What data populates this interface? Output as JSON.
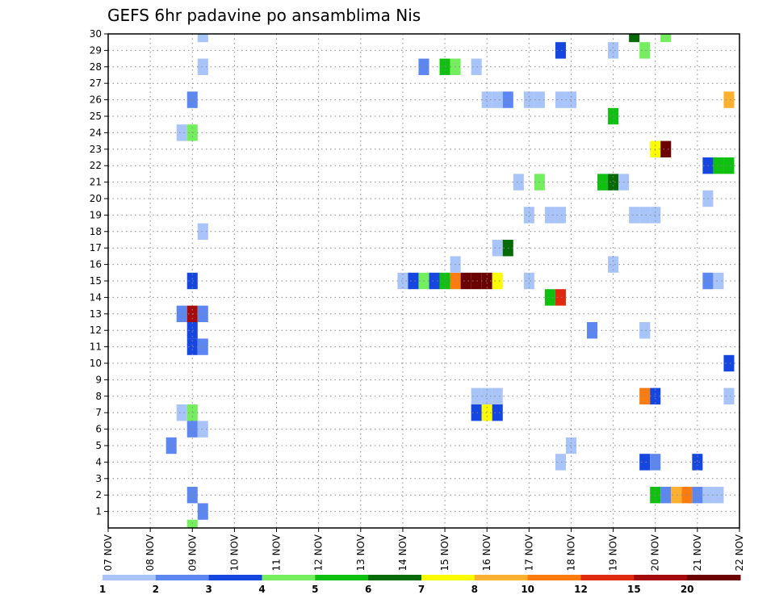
{
  "chart_data": {
    "type": "heatmap",
    "title": "GEFS 6hr padavine po ansamblima Nis",
    "x_ticks": [
      "07 NOV",
      "08 NOV",
      "09 NOV",
      "10 NOV",
      "11 NOV",
      "12 NOV",
      "13 NOV",
      "14 NOV",
      "15 NOV",
      "16 NOV",
      "17 NOV",
      "18 NOV",
      "19 NOV",
      "20 NOV",
      "21 NOV",
      "22 NOV"
    ],
    "y_ticks": [
      "1",
      "2",
      "3",
      "4",
      "5",
      "6",
      "7",
      "8",
      "9",
      "10",
      "11",
      "12",
      "13",
      "14",
      "15",
      "16",
      "17",
      "18",
      "19",
      "20",
      "21",
      "22",
      "23",
      "24",
      "25",
      "26",
      "27",
      "28",
      "29",
      "30"
    ],
    "ylim": [
      0,
      30
    ],
    "grid": true,
    "colorbar": {
      "labels": [
        "1",
        "2",
        "3",
        "4",
        "5",
        "6",
        "7",
        "8",
        "10",
        "12",
        "15",
        "20"
      ],
      "colors": [
        "#a8c4f8",
        "#5c86f0",
        "#1646e0",
        "#74ee5e",
        "#10c010",
        "#066a06",
        "#fcfc00",
        "#fcb030",
        "#fc7c10",
        "#e02a10",
        "#a40a0a",
        "#6a0000"
      ]
    },
    "cells": [
      {
        "x": "09 NOV",
        "t": 1,
        "y": 30,
        "c": 0
      },
      {
        "x": "09 NOV",
        "t": 1,
        "y": 28,
        "c": 0
      },
      {
        "x": "09 NOV",
        "t": 0,
        "y": 26,
        "c": 1
      },
      {
        "x": "09 NOV",
        "t": -1,
        "y": 24,
        "c": 0
      },
      {
        "x": "09 NOV",
        "t": 0,
        "y": 24,
        "c": 3
      },
      {
        "x": "09 NOV",
        "t": 1,
        "y": 18,
        "c": 0
      },
      {
        "x": "09 NOV",
        "t": 0,
        "y": 15,
        "c": 2
      },
      {
        "x": "09 NOV",
        "t": -1,
        "y": 13,
        "c": 1
      },
      {
        "x": "09 NOV",
        "t": 0,
        "y": 13,
        "c": 10
      },
      {
        "x": "09 NOV",
        "t": 1,
        "y": 13,
        "c": 1
      },
      {
        "x": "09 NOV",
        "t": 0,
        "y": 12,
        "c": 2
      },
      {
        "x": "09 NOV",
        "t": 0,
        "y": 11,
        "c": 2
      },
      {
        "x": "09 NOV",
        "t": 1,
        "y": 11,
        "c": 1
      },
      {
        "x": "09 NOV",
        "t": -1,
        "y": 7,
        "c": 0
      },
      {
        "x": "09 NOV",
        "t": 0,
        "y": 7,
        "c": 3
      },
      {
        "x": "09 NOV",
        "t": 0,
        "y": 6,
        "c": 1
      },
      {
        "x": "09 NOV",
        "t": 1,
        "y": 6,
        "c": 0
      },
      {
        "x": "09 NOV",
        "t": -2,
        "y": 5,
        "c": 1
      },
      {
        "x": "09 NOV",
        "t": 0,
        "y": 2,
        "c": 1
      },
      {
        "x": "09 NOV",
        "t": 1,
        "y": 1,
        "c": 1
      },
      {
        "x": "09 NOV",
        "t": 0,
        "y": 0,
        "c": 3
      },
      {
        "x": "14 NOV",
        "t": 2,
        "y": 28,
        "c": 1
      },
      {
        "x": "15 NOV",
        "t": 0,
        "y": 28,
        "c": 4
      },
      {
        "x": "15 NOV",
        "t": 1,
        "y": 28,
        "c": 3
      },
      {
        "x": "15 NOV",
        "t": 3,
        "y": 28,
        "c": 0
      },
      {
        "x": "14 NOV",
        "t": 0,
        "y": 15,
        "c": 0
      },
      {
        "x": "14 NOV",
        "t": 1,
        "y": 15,
        "c": 2
      },
      {
        "x": "14 NOV",
        "t": 2,
        "y": 15,
        "c": 3
      },
      {
        "x": "14 NOV",
        "t": 3,
        "y": 15,
        "c": 2
      },
      {
        "x": "15 NOV",
        "t": 0,
        "y": 15,
        "c": 4
      },
      {
        "x": "15 NOV",
        "t": 1,
        "y": 15,
        "c": 8
      },
      {
        "x": "15 NOV",
        "t": 2,
        "y": 15,
        "c": 11
      },
      {
        "x": "15 NOV",
        "t": 3,
        "y": 15,
        "c": 11
      },
      {
        "x": "16 NOV",
        "t": 0,
        "y": 15,
        "c": 11
      },
      {
        "x": "16 NOV",
        "t": 1,
        "y": 15,
        "c": 6
      },
      {
        "x": "15 NOV",
        "t": 1,
        "y": 16,
        "c": 0
      },
      {
        "x": "16 NOV",
        "t": 0,
        "y": 26,
        "c": 0
      },
      {
        "x": "16 NOV",
        "t": 1,
        "y": 26,
        "c": 0
      },
      {
        "x": "16 NOV",
        "t": 2,
        "y": 26,
        "c": 1
      },
      {
        "x": "17 NOV",
        "t": 0,
        "y": 26,
        "c": 0
      },
      {
        "x": "17 NOV",
        "t": 1,
        "y": 26,
        "c": 0
      },
      {
        "x": "18 NOV",
        "t": 0,
        "y": 26,
        "c": 0
      },
      {
        "x": "18 NOV",
        "t": -1,
        "y": 26,
        "c": 0
      },
      {
        "x": "16 NOV",
        "t": 1,
        "y": 17,
        "c": 0
      },
      {
        "x": "16 NOV",
        "t": 2,
        "y": 17,
        "c": 5
      },
      {
        "x": "15 NOV",
        "t": 3,
        "y": 8,
        "c": 0
      },
      {
        "x": "16 NOV",
        "t": 0,
        "y": 8,
        "c": 0
      },
      {
        "x": "16 NOV",
        "t": 1,
        "y": 8,
        "c": 0
      },
      {
        "x": "15 NOV",
        "t": 3,
        "y": 7,
        "c": 2
      },
      {
        "x": "16 NOV",
        "t": 0,
        "y": 7,
        "c": 6
      },
      {
        "x": "16 NOV",
        "t": 1,
        "y": 7,
        "c": 2
      },
      {
        "x": "16 NOV",
        "t": 3,
        "y": 21,
        "c": 0
      },
      {
        "x": "17 NOV",
        "t": 1,
        "y": 21,
        "c": 3
      },
      {
        "x": "17 NOV",
        "t": 0,
        "y": 19,
        "c": 0
      },
      {
        "x": "17 NOV",
        "t": 2,
        "y": 19,
        "c": 0
      },
      {
        "x": "17 NOV",
        "t": 3,
        "y": 19,
        "c": 0
      },
      {
        "x": "17 NOV",
        "t": 0,
        "y": 15,
        "c": 0
      },
      {
        "x": "17 NOV",
        "t": 2,
        "y": 14,
        "c": 4
      },
      {
        "x": "17 NOV",
        "t": 3,
        "y": 14,
        "c": 9
      },
      {
        "x": "17 NOV",
        "t": 3,
        "y": 29,
        "c": 2
      },
      {
        "x": "18 NOV",
        "t": 0,
        "y": 5,
        "c": 0
      },
      {
        "x": "18 NOV",
        "t": -1,
        "y": 4,
        "c": 0
      },
      {
        "x": "18 NOV",
        "t": 2,
        "y": 12,
        "c": 1
      },
      {
        "x": "19 NOV",
        "t": 0,
        "y": 29,
        "c": 0
      },
      {
        "x": "19 NOV",
        "t": 0,
        "y": 25,
        "c": 4
      },
      {
        "x": "18 NOV",
        "t": 3,
        "y": 21,
        "c": 0
      },
      {
        "x": "19 NOV",
        "t": -1,
        "y": 21,
        "c": 4
      },
      {
        "x": "19 NOV",
        "t": 0,
        "y": 21,
        "c": 5
      },
      {
        "x": "19 NOV",
        "t": 1,
        "y": 21,
        "c": 0
      },
      {
        "x": "19 NOV",
        "t": 0,
        "y": 16,
        "c": 0
      },
      {
        "x": "19 NOV",
        "t": 2,
        "y": 19,
        "c": 0
      },
      {
        "x": "19 NOV",
        "t": 3,
        "y": 19,
        "c": 0
      },
      {
        "x": "20 NOV",
        "t": 0,
        "y": 19,
        "c": 0
      },
      {
        "x": "19 NOV",
        "t": 3,
        "y": 12,
        "c": 0
      },
      {
        "x": "20 NOV",
        "t": -1,
        "y": 12,
        "c": 0
      },
      {
        "x": "19 NOV",
        "t": 2,
        "y": 30,
        "c": 5
      },
      {
        "x": "20 NOV",
        "t": 1,
        "y": 30,
        "c": 3
      },
      {
        "x": "19 NOV",
        "t": 3,
        "y": 29,
        "c": 3
      },
      {
        "x": "20 NOV",
        "t": 0,
        "y": 23,
        "c": 6
      },
      {
        "x": "20 NOV",
        "t": 1,
        "y": 23,
        "c": 11
      },
      {
        "x": "19 NOV",
        "t": 3,
        "y": 8,
        "c": 0
      },
      {
        "x": "20 NOV",
        "t": -1,
        "y": 8,
        "c": 8
      },
      {
        "x": "20 NOV",
        "t": 0,
        "y": 8,
        "c": 2
      },
      {
        "x": "20 NOV",
        "t": -1,
        "y": 4,
        "c": 2
      },
      {
        "x": "20 NOV",
        "t": 0,
        "y": 4,
        "c": 1
      },
      {
        "x": "20 NOV",
        "t": 0,
        "y": 2,
        "c": 4
      },
      {
        "x": "20 NOV",
        "t": 1,
        "y": 2,
        "c": 1
      },
      {
        "x": "20 NOV",
        "t": 2,
        "y": 2,
        "c": 7
      },
      {
        "x": "20 NOV",
        "t": 3,
        "y": 2,
        "c": 8
      },
      {
        "x": "21 NOV",
        "t": 0,
        "y": 2,
        "c": 1
      },
      {
        "x": "21 NOV",
        "t": 1,
        "y": 2,
        "c": 0
      },
      {
        "x": "21 NOV",
        "t": 2,
        "y": 2,
        "c": 0
      },
      {
        "x": "21 NOV",
        "t": 1,
        "y": 20,
        "c": 0
      },
      {
        "x": "21 NOV",
        "t": 1,
        "y": 15,
        "c": 1
      },
      {
        "x": "21 NOV",
        "t": 2,
        "y": 15,
        "c": 0
      },
      {
        "x": "21 NOV",
        "t": 0,
        "y": 4,
        "c": 2
      },
      {
        "x": "21 NOV",
        "t": 1,
        "y": 22,
        "c": 2
      },
      {
        "x": "21 NOV",
        "t": 2,
        "y": 22,
        "c": 4
      },
      {
        "x": "21 NOV",
        "t": 3,
        "y": 22,
        "c": 4
      },
      {
        "x": "21 NOV",
        "t": 3,
        "y": 26,
        "c": 7
      },
      {
        "x": "21 NOV",
        "t": 3,
        "y": 10,
        "c": 2
      },
      {
        "x": "21 NOV",
        "t": 3,
        "y": 8,
        "c": 0
      }
    ]
  }
}
